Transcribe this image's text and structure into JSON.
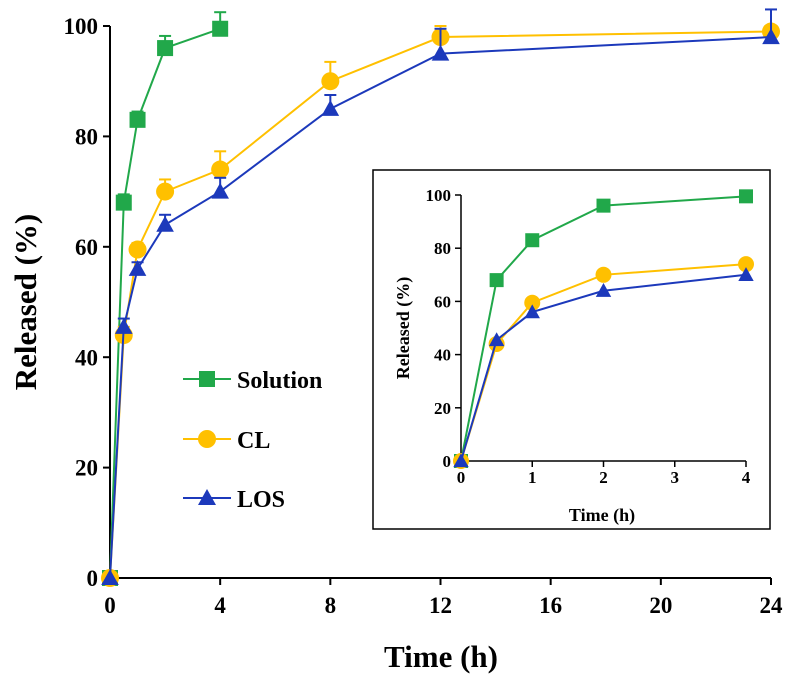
{
  "chart_data": [
    {
      "type": "line",
      "title": "",
      "xlabel": "Time (h)",
      "ylabel": "Released (%)",
      "xlim": [
        0,
        24
      ],
      "ylim": [
        0,
        100
      ],
      "xticks": [
        0,
        4,
        8,
        12,
        16,
        20,
        24
      ],
      "yticks": [
        0,
        20,
        40,
        60,
        80,
        100
      ],
      "xtick_labels": [
        "0",
        "4",
        "8",
        "12",
        "16",
        "20",
        "24"
      ],
      "ytick_labels": [
        "0",
        "20",
        "40",
        "60",
        "80",
        "100"
      ],
      "legend_placement": "center-left",
      "series": [
        {
          "name": "Solution",
          "color": "#21a84a",
          "marker": "square",
          "x": [
            0,
            0.5,
            1,
            2,
            4
          ],
          "values": [
            0,
            68,
            83,
            96,
            99.5
          ],
          "err": [
            0,
            1.5,
            1.5,
            2.2,
            3
          ]
        },
        {
          "name": "CL",
          "color": "#ffc000",
          "marker": "circle",
          "x": [
            0,
            0.5,
            1,
            2,
            4,
            8,
            12,
            24
          ],
          "values": [
            0,
            44,
            59.5,
            70,
            74,
            90,
            98,
            99
          ],
          "err": [
            0,
            1.5,
            1.2,
            2.2,
            3.3,
            3.5,
            2,
            1
          ]
        },
        {
          "name": "LOS",
          "color": "#1c39bb",
          "marker": "triangle",
          "x": [
            0,
            0.5,
            1,
            2,
            4,
            8,
            12,
            24
          ],
          "values": [
            0,
            45.5,
            56,
            64,
            70,
            85,
            95,
            98
          ],
          "err": [
            0,
            1.5,
            1.2,
            1.8,
            2.5,
            2.5,
            4.5,
            5
          ]
        }
      ]
    },
    {
      "type": "line",
      "title": "",
      "xlabel": "Time (h)",
      "ylabel": "Released (%)",
      "xlim": [
        0,
        4
      ],
      "ylim": [
        0,
        100
      ],
      "xticks": [
        0,
        1,
        2,
        3,
        4
      ],
      "yticks": [
        0,
        20,
        40,
        60,
        80,
        100
      ],
      "xtick_labels": [
        "0",
        "1",
        "2",
        "3",
        "4"
      ],
      "ytick_labels": [
        "0",
        "20",
        "40",
        "60",
        "80",
        "100"
      ],
      "series": [
        {
          "name": "Solution",
          "color": "#21a84a",
          "marker": "square",
          "x": [
            0,
            0.5,
            1,
            2,
            4
          ],
          "values": [
            0,
            68,
            83,
            96,
            99.5
          ]
        },
        {
          "name": "CL",
          "color": "#ffc000",
          "marker": "circle",
          "x": [
            0,
            0.5,
            1,
            2,
            4
          ],
          "values": [
            0,
            44,
            59.5,
            70,
            74
          ]
        },
        {
          "name": "LOS",
          "color": "#1c39bb",
          "marker": "triangle",
          "x": [
            0,
            0.5,
            1,
            2,
            4
          ],
          "values": [
            0,
            45.5,
            56,
            64,
            70
          ]
        }
      ]
    }
  ]
}
